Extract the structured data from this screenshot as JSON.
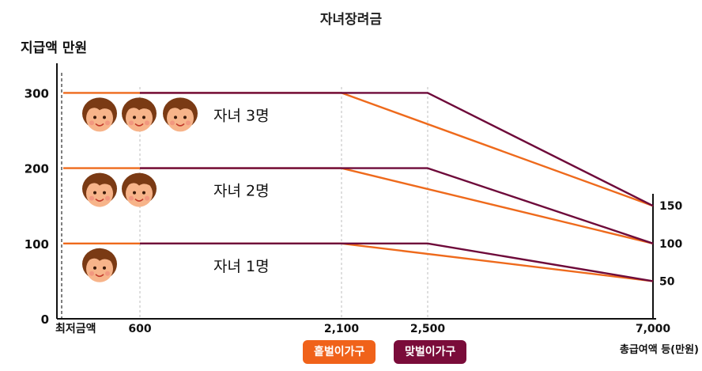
{
  "chart_data": {
    "type": "line",
    "title": "자녀장려금",
    "ylabel": "지급액 만원",
    "xlabel": "총급여액 등(만원)",
    "ylim": [
      0,
      300
    ],
    "x_ticks": [
      {
        "value": 0,
        "label": "최저금액"
      },
      {
        "value": 600,
        "label": "600"
      },
      {
        "value": 2100,
        "label": "2,100"
      },
      {
        "value": 2500,
        "label": "2,500"
      },
      {
        "value": 7000,
        "label": "7,000"
      }
    ],
    "y_ticks": [
      {
        "value": 0,
        "label": "0"
      },
      {
        "value": 100,
        "label": "100"
      },
      {
        "value": 200,
        "label": "200"
      },
      {
        "value": 300,
        "label": "300"
      }
    ],
    "right_ticks": [
      {
        "value": 150,
        "label": "150"
      },
      {
        "value": 100,
        "label": "100"
      },
      {
        "value": 50,
        "label": "50"
      }
    ],
    "series": [
      {
        "name": "홑벌이가구",
        "color": "#ee6a1c",
        "group": "자녀 3명",
        "x": [
          0,
          2100,
          7000
        ],
        "y": [
          300,
          300,
          150
        ]
      },
      {
        "name": "맞벌이가구",
        "color": "#6e0a3a",
        "group": "자녀 3명",
        "x": [
          600,
          2500,
          7000
        ],
        "y": [
          300,
          300,
          150
        ]
      },
      {
        "name": "홑벌이가구",
        "color": "#ee6a1c",
        "group": "자녀 2명",
        "x": [
          0,
          2100,
          7000
        ],
        "y": [
          200,
          200,
          100
        ]
      },
      {
        "name": "맞벌이가구",
        "color": "#6e0a3a",
        "group": "자녀 2명",
        "x": [
          600,
          2500,
          7000
        ],
        "y": [
          200,
          200,
          100
        ]
      },
      {
        "name": "홑벌이가구",
        "color": "#ee6a1c",
        "group": "자녀 1명",
        "x": [
          0,
          2100,
          7000
        ],
        "y": [
          100,
          100,
          50
        ]
      },
      {
        "name": "맞벌이가구",
        "color": "#6e0a3a",
        "group": "자녀 1명",
        "x": [
          600,
          2500,
          7000
        ],
        "y": [
          100,
          100,
          50
        ]
      }
    ],
    "annotations": [
      {
        "text": "자녀 3명",
        "children": 3,
        "level": 300
      },
      {
        "text": "자녀 2명",
        "children": 2,
        "level": 200
      },
      {
        "text": "자녀 1명",
        "children": 1,
        "level": 100
      }
    ],
    "legend": [
      {
        "name": "홑벌이가구",
        "color": "#ee6a1c"
      },
      {
        "name": "맞벌이가구",
        "color": "#6e0a3a"
      }
    ]
  }
}
